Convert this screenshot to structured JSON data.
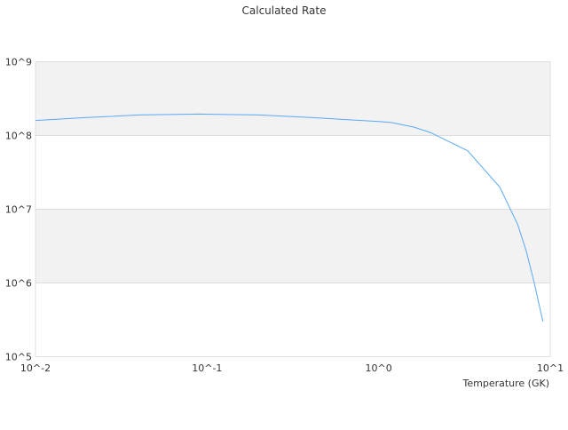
{
  "chart_data": {
    "type": "line",
    "title": "Calculated Rate",
    "xlabel": "Temperature (GK)",
    "ylabel": "",
    "xscale": "log",
    "yscale": "log",
    "xlim": [
      0.01,
      10
    ],
    "ylim": [
      100000,
      1000000000
    ],
    "xticks": [
      "10^-2",
      "10^-1",
      "10^0",
      "10^1"
    ],
    "yticks": [
      "10^5",
      "10^6",
      "10^7",
      "10^8",
      "10^9"
    ],
    "grid": true,
    "banded_background": true,
    "line_color": "#5aa9f5",
    "band_color": "#f2f2f2",
    "series": [
      {
        "x": [
          0.01,
          0.02,
          0.04,
          0.09,
          0.2,
          0.4,
          1.0,
          1.18,
          1.6,
          2.0,
          3.3,
          5.08,
          6.46,
          7.25,
          8.07,
          9.06
        ],
        "y": [
          160000000.0,
          175000000.0,
          190000000.0,
          195000000.0,
          190000000.0,
          175000000.0,
          155000000.0,
          150000000.0,
          130000000.0,
          110000000.0,
          62000000.0,
          20000000.0,
          6200000.0,
          2700000.0,
          1000000.0,
          300000.0
        ]
      }
    ]
  }
}
